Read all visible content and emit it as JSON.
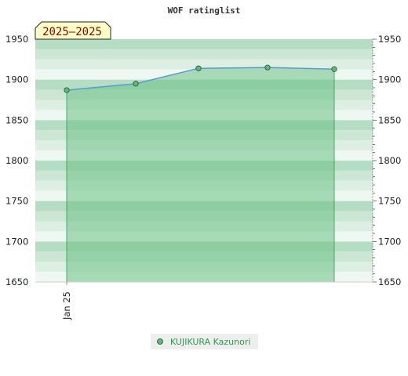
{
  "chart_data": {
    "type": "area",
    "title": "WOF ratinglist",
    "badge": "2025–2025",
    "xlabel": "",
    "ylabel": "",
    "categories": [
      "Jan 25",
      "",
      "",
      "",
      ""
    ],
    "series": [
      {
        "name": "KUJIKURA Kazunori",
        "values": [
          1887,
          1895,
          1914,
          1915,
          1913
        ]
      }
    ],
    "ylim": [
      1650,
      1950
    ],
    "yticks": [
      1650,
      1700,
      1750,
      1800,
      1850,
      1900,
      1950
    ],
    "y_axis_sides": [
      "left",
      "right"
    ],
    "grid": true,
    "legend_position": "bottom",
    "colors": {
      "band_dark": "#b5ddc3",
      "band_mid": "#cbe7d3",
      "band_light": "#ddefe3",
      "band_pale": "#eef7f1",
      "area_fill": "#6cc185",
      "area_edge": "#2e9a4b",
      "line": "#5b9bd5",
      "marker": "#5fb87a",
      "badge_bg": "#ffffc8",
      "badge_text": "#8b0000",
      "legend_bg": "#eeeeee",
      "legend_text": "#2e9a4b"
    }
  }
}
